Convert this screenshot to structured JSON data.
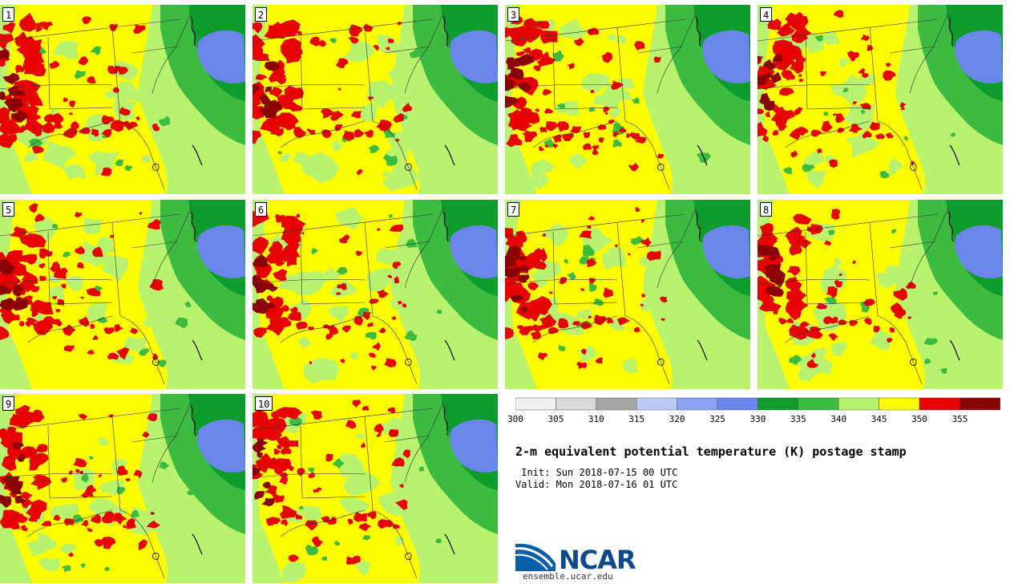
{
  "title": "2-m equivalent potential temperature (K) postage stamp",
  "init": " Init: Sun 2018-07-15 00 UTC",
  "valid": "Valid: Mon 2018-07-16 01 UTC",
  "logo": {
    "name": "NCAR",
    "url": "ensemble.ucar.edu"
  },
  "members": [
    "1",
    "2",
    "3",
    "4",
    "5",
    "6",
    "7",
    "8",
    "9",
    "10"
  ],
  "colorbar": {
    "ticks": [
      "300",
      "305",
      "310",
      "315",
      "320",
      "325",
      "330",
      "335",
      "340",
      "345",
      "350",
      "355"
    ],
    "colors": [
      "#f0f0f0",
      "#d9d9d9",
      "#a6a6a6",
      "#bcccf7",
      "#8aa3f2",
      "#6b86ea",
      "#0e9c2c",
      "#3dbb40",
      "#b8f26e",
      "#fdfd00",
      "#e60000",
      "#8b0000"
    ]
  }
}
